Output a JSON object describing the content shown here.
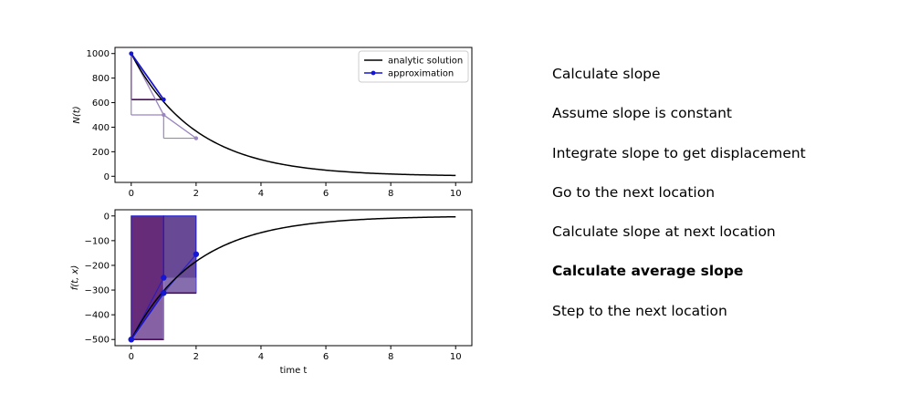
{
  "colors": {
    "analytic": "#000000",
    "approx": "#1515d6",
    "purple_dark": "#4b0f5a",
    "purple_fill": "#5a1a6e",
    "purple_fill2": "#5a3a8c",
    "purple_light": "#9b85c0"
  },
  "steps": {
    "active_index": 5,
    "items": [
      "Calculate slope",
      "Assume slope is constant",
      "Integrate slope to get displacement",
      "Go to the next location",
      "Calculate slope at next location",
      "Calculate average slope",
      "Step to the next location"
    ]
  },
  "chart_data": [
    {
      "type": "line",
      "ylabel": "N(t)",
      "xlabel": "",
      "xlim": [
        -0.5,
        10.5
      ],
      "ylim": [
        -50,
        1050
      ],
      "xticks": [
        0,
        2,
        4,
        6,
        8,
        10
      ],
      "yticks": [
        0,
        200,
        400,
        600,
        800,
        1000
      ],
      "legend": {
        "placement": "top-right",
        "entries": [
          "analytic solution",
          "approximation"
        ]
      },
      "series": [
        {
          "name": "analytic solution",
          "function": "1000*exp(-t/2)",
          "x_range": [
            0,
            10
          ]
        },
        {
          "name": "approximation",
          "x": [
            0,
            1
          ],
          "y": [
            1000,
            625
          ]
        }
      ],
      "annotations": {
        "slope_triangles": [
          {
            "x": [
              0,
              1
            ],
            "y_start": 1000,
            "y_end": 625
          },
          {
            "x": [
              0,
              1
            ],
            "y_start": 1000,
            "y_end": 500
          },
          {
            "x": [
              1,
              2
            ],
            "y_start": 500,
            "y_end": 310
          }
        ],
        "ghost_points": {
          "x": [
            0,
            1,
            2
          ],
          "y": [
            1000,
            500,
            310
          ]
        }
      }
    },
    {
      "type": "line",
      "ylabel": "f(t, x)",
      "xlabel": "time t",
      "xlim": [
        -0.5,
        10.5
      ],
      "ylim": [
        -525,
        25
      ],
      "xticks": [
        0,
        2,
        4,
        6,
        8,
        10
      ],
      "yticks": [
        0,
        -100,
        -200,
        -300,
        -400,
        -500
      ],
      "series": [
        {
          "name": "analytic solution",
          "function": "-500*exp(-t/2)",
          "x_range": [
            0,
            10
          ]
        },
        {
          "name": "approximation",
          "x": [
            0,
            1
          ],
          "y": [
            -500,
            -312
          ]
        }
      ],
      "annotations": {
        "slope_points": {
          "x": [
            0,
            1,
            1,
            2
          ],
          "y": [
            -500,
            -250,
            -312,
            -155
          ]
        },
        "slope_areas": [
          {
            "x": [
              0,
              1
            ],
            "y_top": 0,
            "y_bottom": -500
          },
          {
            "x": [
              1,
              2
            ],
            "y_top": 0,
            "y_bottom": -312
          }
        ],
        "light_steps": [
          {
            "x": [
              0,
              1
            ],
            "y": -500
          },
          {
            "x": [
              1,
              2
            ],
            "y": -312
          }
        ]
      }
    }
  ]
}
